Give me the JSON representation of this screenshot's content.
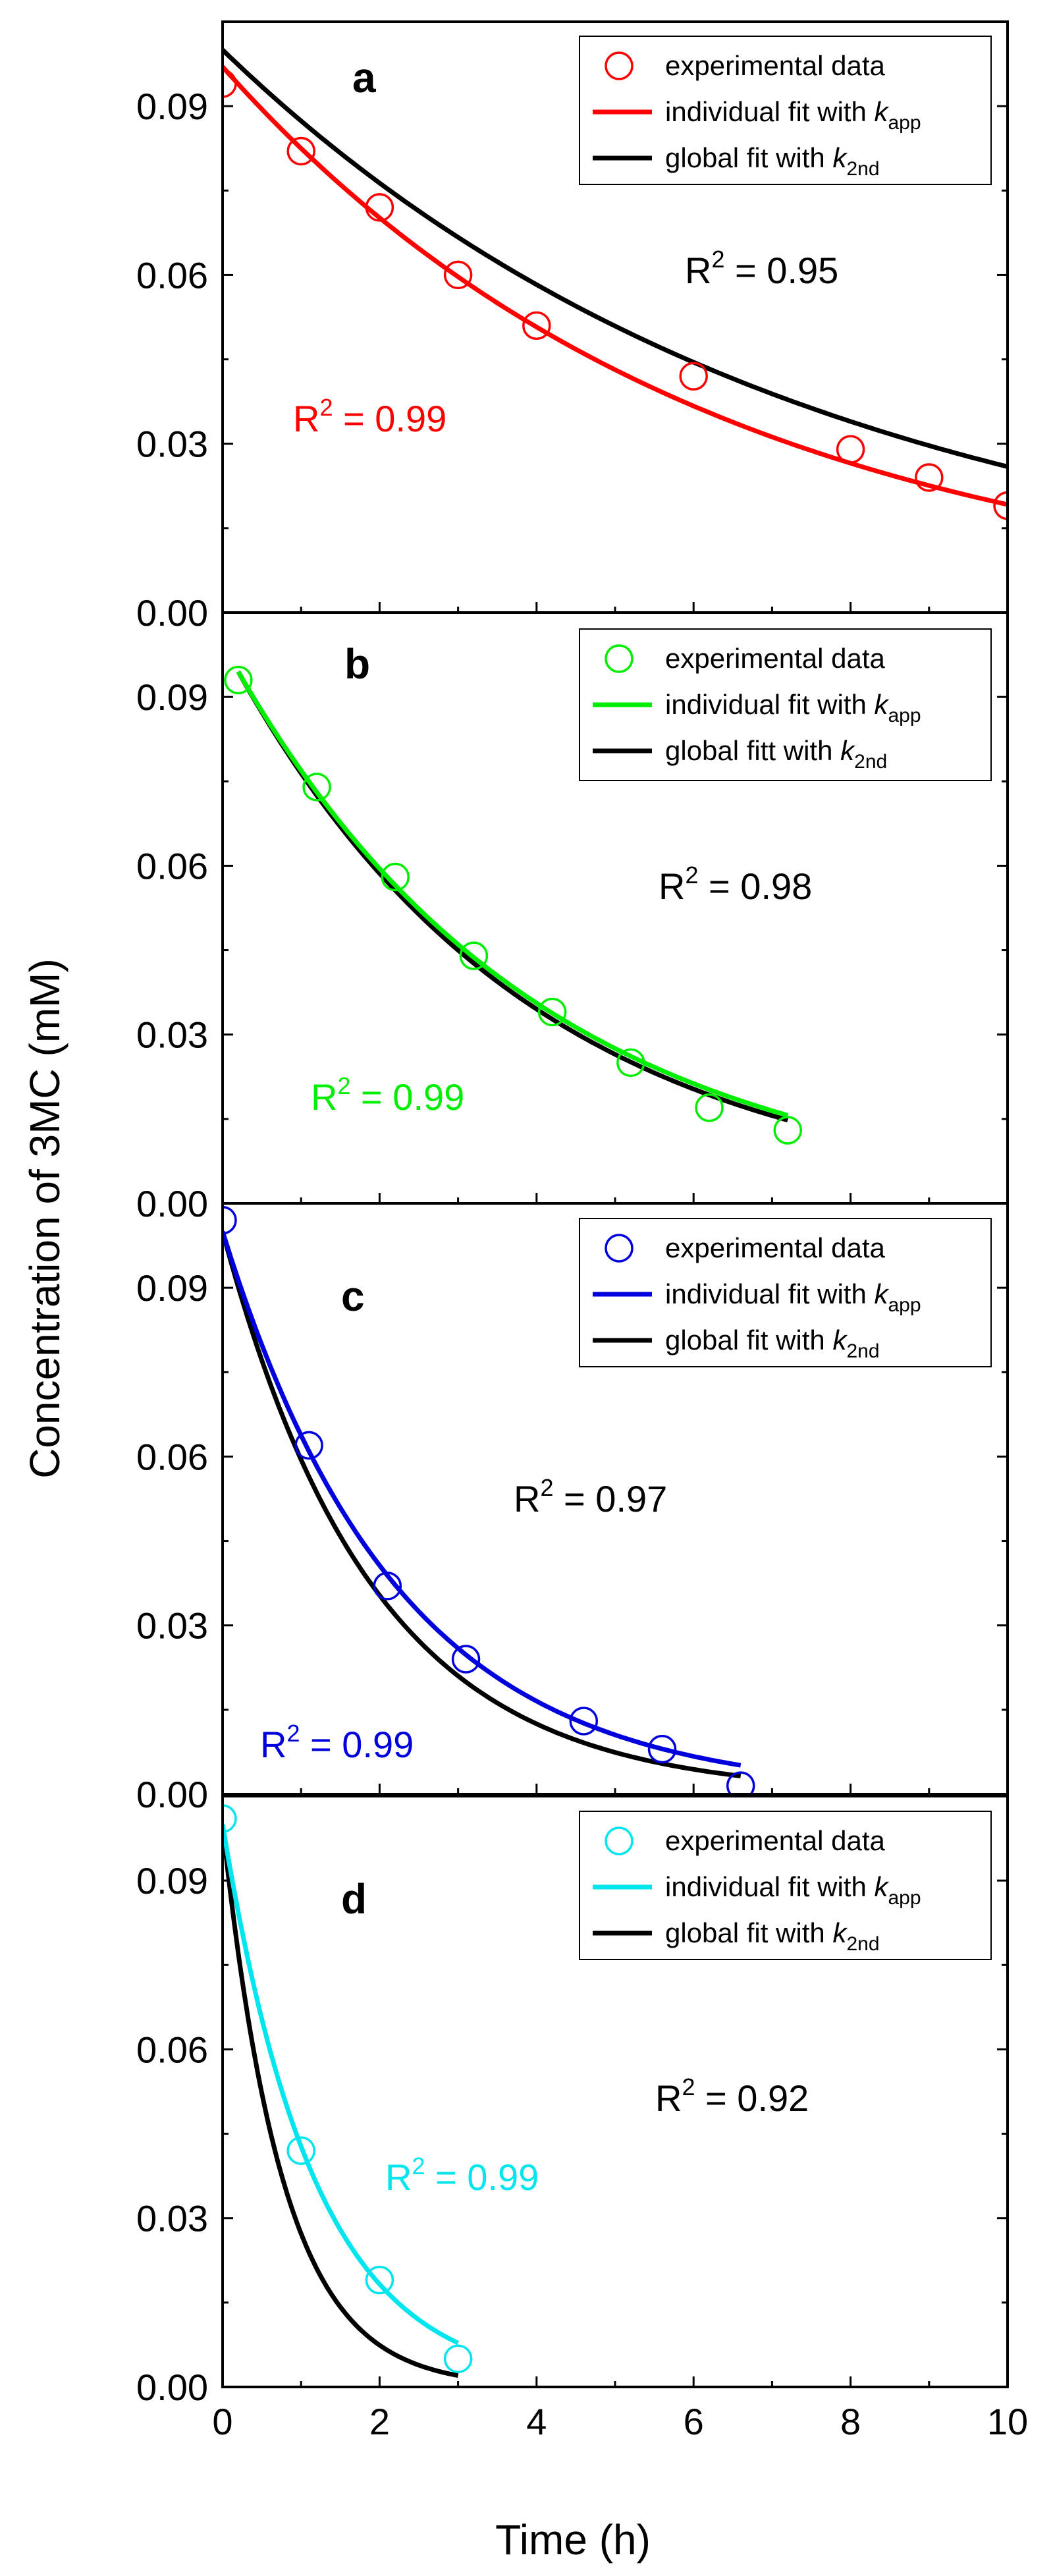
{
  "chart_data": {
    "type": "scatter",
    "shared_axes": {
      "xlabel": "Time (h)",
      "ylabel": "Concentration of 3MC (mM)",
      "xlim": [
        0,
        10
      ],
      "ylim": [
        0,
        0.105
      ],
      "xticks": [
        "0",
        "2",
        "4",
        "6",
        "8",
        "10"
      ],
      "yticks": [
        "0.00",
        "0.03",
        "0.06",
        "0.09"
      ]
    },
    "panels": [
      {
        "label": "a",
        "color": "#ff0000",
        "legend": [
          "experimental data",
          "individual fit with ",
          "global fit with "
        ],
        "legend_k": [
          {
            "k": "k",
            "sub": "app"
          },
          {
            "k": "k",
            "sub": "2nd"
          }
        ],
        "r2_individual": {
          "prefix": "R",
          "sup": "2",
          "value": " = 0.99"
        },
        "r2_global": {
          "prefix": "R",
          "sup": "2",
          "value": " = 0.95"
        },
        "x": [
          0,
          1,
          2,
          3,
          4,
          6,
          8,
          9,
          10
        ],
        "y": [
          0.094,
          0.082,
          0.072,
          0.06,
          0.051,
          0.042,
          0.029,
          0.024,
          0.019
        ],
        "individual_fit": {
          "c0": 0.097,
          "k": 0.162,
          "t_end": 10
        },
        "global_fit": {
          "c0": 0.1,
          "k": 0.135,
          "t_end": 10
        }
      },
      {
        "label": "b",
        "color": "#00ee00",
        "legend": [
          "experimental data",
          "individual fit with ",
          "global fitt with "
        ],
        "legend_k": [
          {
            "k": "k",
            "sub": "app"
          },
          {
            "k": "k",
            "sub": "2nd"
          }
        ],
        "r2_individual": {
          "prefix": "R",
          "sup": "2",
          "value": " = 0.99"
        },
        "r2_global": {
          "prefix": "R",
          "sup": "2",
          "value": " = 0.98"
        },
        "x": [
          0.2,
          1.2,
          2.2,
          3.2,
          4.2,
          5.2,
          6.2,
          7.2
        ],
        "y": [
          0.093,
          0.074,
          0.058,
          0.044,
          0.034,
          0.025,
          0.017,
          0.013
        ],
        "individual_fit": {
          "c0": 0.0945,
          "k": 0.257,
          "t0": 0.2,
          "t_end": 7.2
        },
        "global_fit": {
          "c0": 0.0945,
          "k": 0.265,
          "t0": 0.2,
          "t_end": 7.2
        }
      },
      {
        "label": "c",
        "color": "#0000dd",
        "legend": [
          "experimental data",
          "individual fit with ",
          "global fit with "
        ],
        "legend_k": [
          {
            "k": "k",
            "sub": "app"
          },
          {
            "k": "k",
            "sub": "2nd"
          }
        ],
        "r2_individual": {
          "prefix": "R",
          "sup": "2",
          "value": " = 0.99"
        },
        "r2_global": {
          "prefix": "R",
          "sup": "2",
          "value": " = 0.97"
        },
        "x": [
          0,
          1.1,
          2.1,
          3.1,
          4.6,
          5.6,
          6.6
        ],
        "y": [
          0.102,
          0.062,
          0.037,
          0.024,
          0.013,
          0.008,
          0.0015
        ],
        "individual_fit": {
          "c0": 0.1,
          "k": 0.45,
          "t_end": 6.6
        },
        "global_fit": {
          "c0": 0.1,
          "k": 0.52,
          "t_end": 6.6
        }
      },
      {
        "label": "d",
        "color": "#00e5ee",
        "legend": [
          "experimental data",
          "individual fit with ",
          "global fit with "
        ],
        "legend_k": [
          {
            "k": "k",
            "sub": "app"
          },
          {
            "k": "k",
            "sub": "2nd"
          }
        ],
        "r2_individual": {
          "prefix": "R",
          "sup": "2",
          "value": " = 0.99"
        },
        "r2_global": {
          "prefix": "R",
          "sup": "2",
          "value": " = 0.92"
        },
        "x": [
          0,
          1,
          2,
          3
        ],
        "y": [
          0.101,
          0.042,
          0.019,
          0.005
        ],
        "individual_fit": {
          "c0": 0.1,
          "k": 0.85,
          "t_end": 3
        },
        "global_fit": {
          "c0": 0.1,
          "k": 1.3,
          "t_end": 3
        }
      }
    ]
  }
}
